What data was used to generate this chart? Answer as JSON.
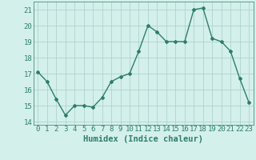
{
  "title": "",
  "xlabel": "Humidex (Indice chaleur)",
  "ylabel": "",
  "x": [
    0,
    1,
    2,
    3,
    4,
    5,
    6,
    7,
    8,
    9,
    10,
    11,
    12,
    13,
    14,
    15,
    16,
    17,
    18,
    19,
    20,
    21,
    22,
    23
  ],
  "y": [
    17.1,
    16.5,
    15.4,
    14.4,
    15.0,
    15.0,
    14.9,
    15.5,
    16.5,
    16.8,
    17.0,
    18.4,
    20.0,
    19.6,
    19.0,
    19.0,
    19.0,
    21.0,
    21.1,
    19.2,
    19.0,
    18.4,
    16.7,
    15.2
  ],
  "line_color": "#2e7d6e",
  "marker": "D",
  "marker_size": 2.0,
  "line_width": 1.0,
  "bg_color": "#d4f0eb",
  "grid_color": "#afd4cd",
  "ylim": [
    13.8,
    21.5
  ],
  "yticks": [
    14,
    15,
    16,
    17,
    18,
    19,
    20,
    21
  ],
  "xlim": [
    -0.5,
    23.5
  ],
  "tick_fontsize": 6.5,
  "label_fontsize": 7.5
}
